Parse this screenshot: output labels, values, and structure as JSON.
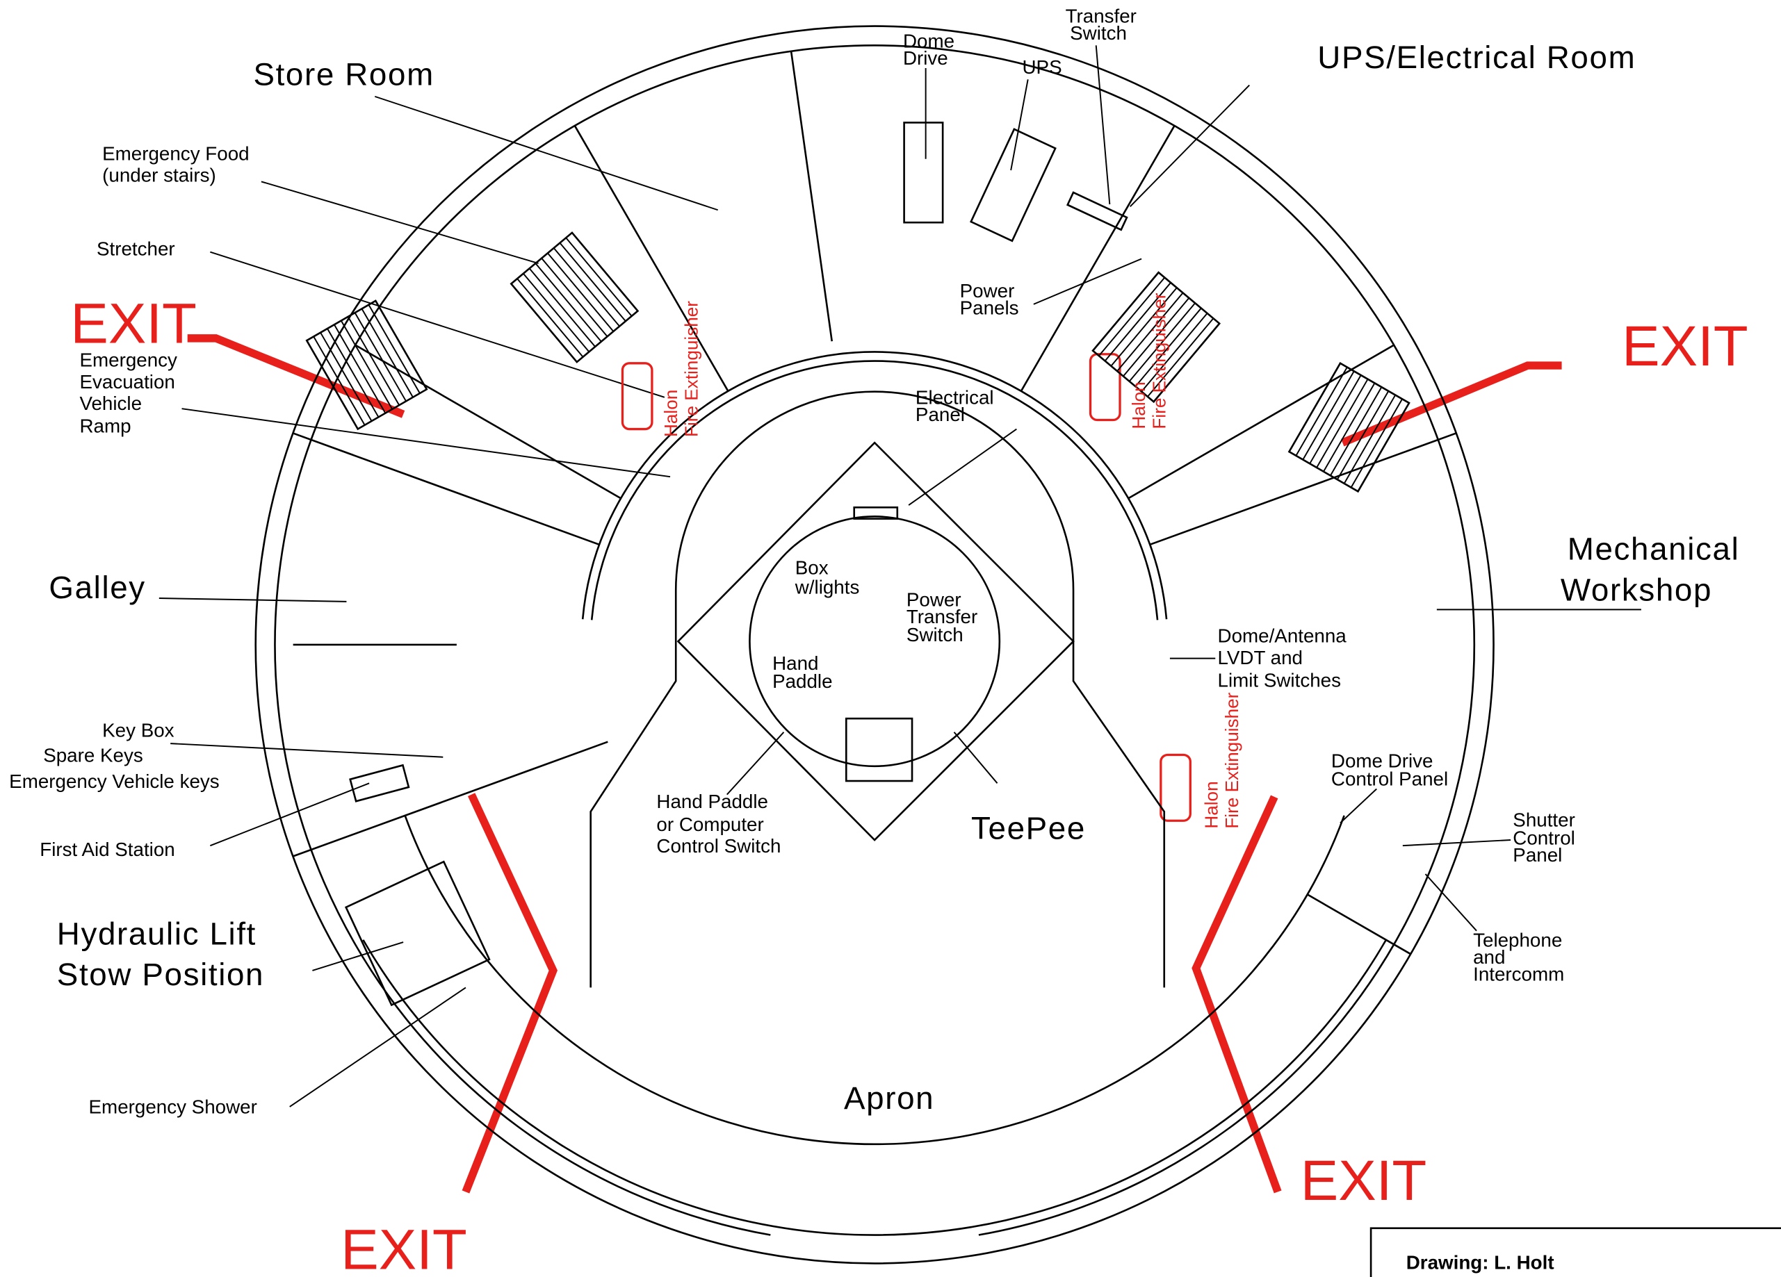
{
  "rooms": {
    "store_room": "Store Room",
    "ups_room": "UPS/Electrical Room",
    "galley": "Galley",
    "mechanical": [
      "Mechanical",
      "Workshop"
    ],
    "hydraulic": [
      "Hydraulic Lift",
      "Stow Position"
    ],
    "teepee": "TeePee",
    "apron": "Apron"
  },
  "labels": {
    "dome_drive": [
      "Dome",
      "Drive"
    ],
    "ups": "UPS",
    "transfer_switch": [
      "Transfer",
      "Switch"
    ],
    "emergency_food": [
      "Emergency Food",
      "(under stairs)"
    ],
    "stretcher": "Stretcher",
    "ramp": [
      "Emergency",
      "Evacuation",
      "Vehicle",
      "Ramp"
    ],
    "power_panels": [
      "Power",
      "Panels"
    ],
    "electrical_panel": [
      "Electrical",
      "Panel"
    ],
    "box_lights": [
      "Box",
      "w/lights"
    ],
    "power_transfer": [
      "Power",
      "Transfer",
      "Switch"
    ],
    "hand_paddle": [
      "Hand",
      "Paddle"
    ],
    "dome_antenna": [
      "Dome/Antenna",
      "LVDT and",
      "Limit Switches"
    ],
    "key_box": [
      "Key Box",
      "Spare Keys",
      "Emergency Vehicle keys"
    ],
    "dome_drive_panel": [
      "Dome Drive",
      "Control Panel"
    ],
    "first_aid": "First Aid Station",
    "hand_paddle_switch": [
      "Hand Paddle",
      "or Computer",
      "Control Switch"
    ],
    "shutter_panel": [
      "Shutter",
      "Control",
      "Panel"
    ],
    "telephone": [
      "Telephone",
      "and",
      "Intercomm"
    ],
    "emergency_shower": "Emergency Shower"
  },
  "extinguishers": [
    [
      "Halon",
      "Fire Extinguisher"
    ],
    [
      "Halon",
      "Fire Extinguisher"
    ],
    [
      "Halon",
      "Fire Extinguisher"
    ]
  ],
  "exits": [
    "EXIT",
    "EXIT",
    "EXIT",
    "EXIT"
  ],
  "credit": "Drawing: L. Holt"
}
